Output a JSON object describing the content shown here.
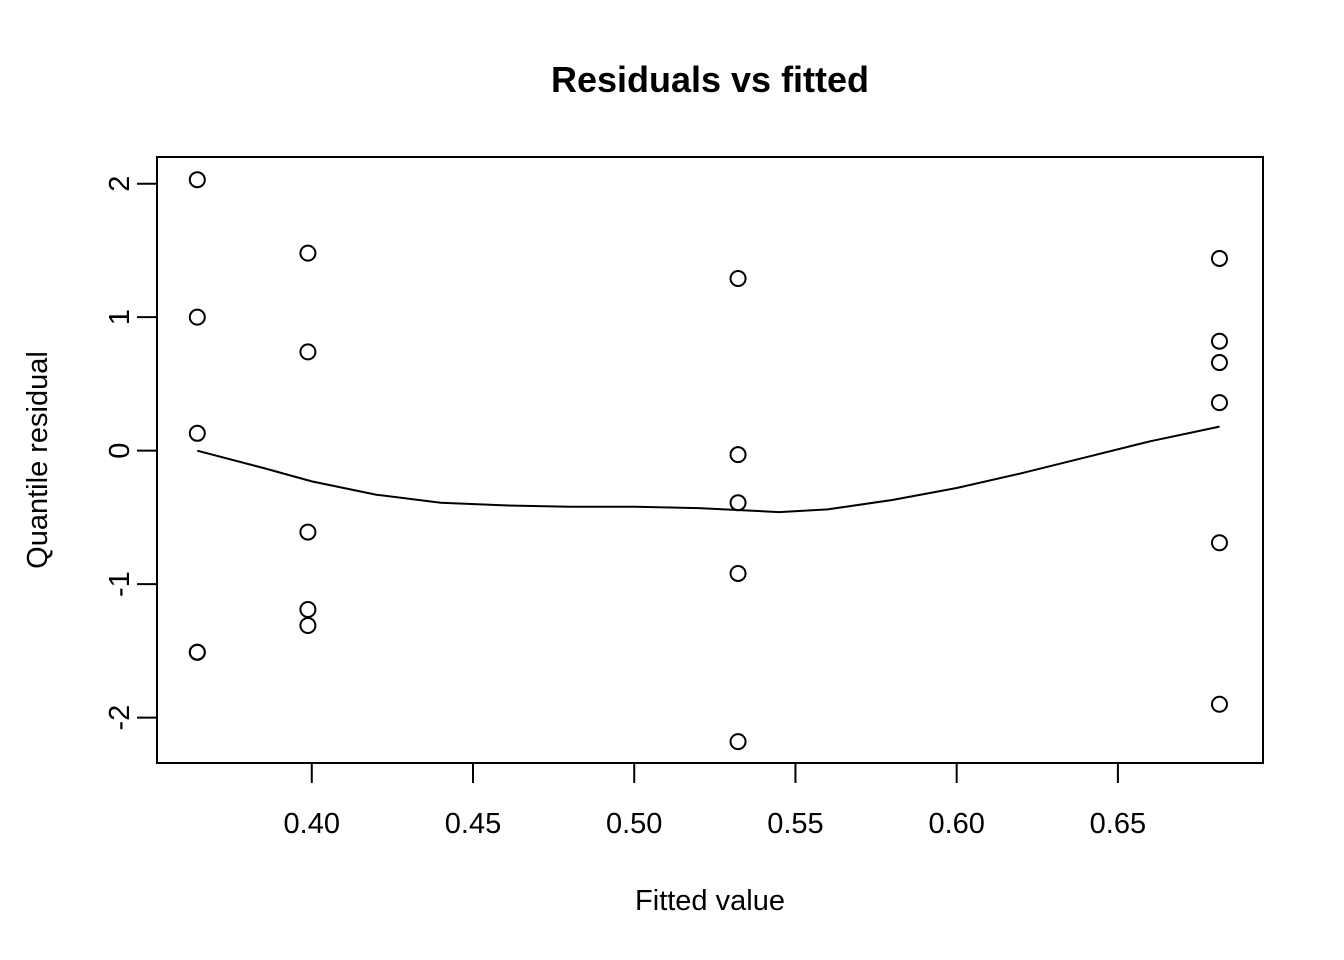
{
  "chart_data": {
    "type": "scatter",
    "title": "Residuals vs fitted",
    "xlabel": "Fitted value",
    "ylabel": "Quantile residual",
    "xlim": [
      0.352,
      0.695
    ],
    "ylim": [
      -2.34,
      2.2
    ],
    "xticks": [
      0.4,
      0.45,
      0.5,
      0.55,
      0.6,
      0.65
    ],
    "xtick_labels": [
      "0.40",
      "0.45",
      "0.50",
      "0.55",
      "0.60",
      "0.65"
    ],
    "yticks": [
      2,
      1,
      0,
      -1,
      -2
    ],
    "ytick_labels": [
      "2",
      "1",
      "0",
      "-1",
      "-2"
    ],
    "grid": false,
    "legend": "none",
    "points": [
      {
        "x": 0.3645,
        "y": 2.03
      },
      {
        "x": 0.3645,
        "y": 1.0
      },
      {
        "x": 0.3645,
        "y": 0.13
      },
      {
        "x": 0.3645,
        "y": -1.51
      },
      {
        "x": 0.3645,
        "y": -1.51
      },
      {
        "x": 0.3988,
        "y": 1.48
      },
      {
        "x": 0.3988,
        "y": 0.74
      },
      {
        "x": 0.3988,
        "y": -0.61
      },
      {
        "x": 0.3988,
        "y": -1.19
      },
      {
        "x": 0.3988,
        "y": -1.31
      },
      {
        "x": 0.5322,
        "y": 1.29
      },
      {
        "x": 0.5322,
        "y": -0.03
      },
      {
        "x": 0.5322,
        "y": -0.39
      },
      {
        "x": 0.5322,
        "y": -0.92
      },
      {
        "x": 0.5322,
        "y": -2.18
      },
      {
        "x": 0.6815,
        "y": 1.44
      },
      {
        "x": 0.6815,
        "y": 0.82
      },
      {
        "x": 0.6815,
        "y": 0.66
      },
      {
        "x": 0.6815,
        "y": 0.36
      },
      {
        "x": 0.6815,
        "y": -0.69
      },
      {
        "x": 0.6815,
        "y": -1.9
      }
    ],
    "smooth_line": [
      {
        "x": 0.3645,
        "y": 0.0
      },
      {
        "x": 0.385,
        "y": -0.13
      },
      {
        "x": 0.4,
        "y": -0.23
      },
      {
        "x": 0.42,
        "y": -0.33
      },
      {
        "x": 0.44,
        "y": -0.39
      },
      {
        "x": 0.46,
        "y": -0.41
      },
      {
        "x": 0.48,
        "y": -0.42
      },
      {
        "x": 0.5,
        "y": -0.42
      },
      {
        "x": 0.52,
        "y": -0.43
      },
      {
        "x": 0.545,
        "y": -0.46
      },
      {
        "x": 0.56,
        "y": -0.44
      },
      {
        "x": 0.58,
        "y": -0.37
      },
      {
        "x": 0.6,
        "y": -0.28
      },
      {
        "x": 0.62,
        "y": -0.17
      },
      {
        "x": 0.64,
        "y": -0.05
      },
      {
        "x": 0.66,
        "y": 0.07
      },
      {
        "x": 0.6815,
        "y": 0.18
      }
    ],
    "colors": {
      "point_stroke": "#000000",
      "line": "#000000",
      "background": "#ffffff"
    }
  }
}
